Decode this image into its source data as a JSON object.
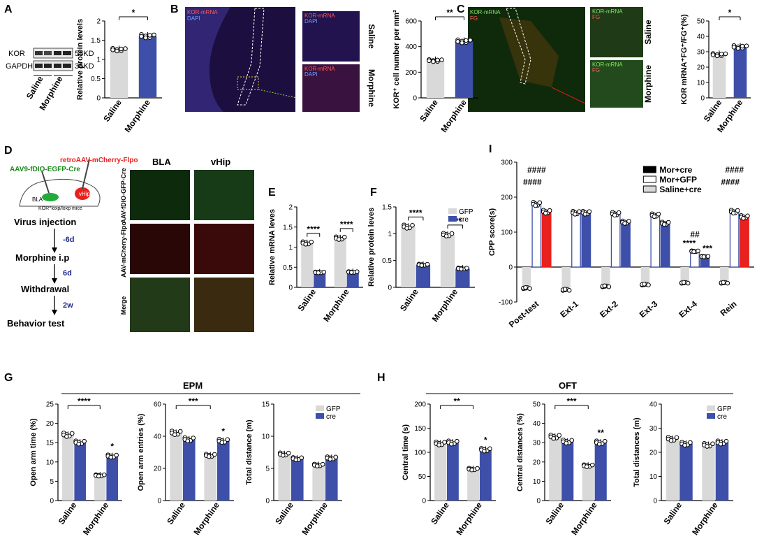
{
  "panels": {
    "A": {
      "label": "A",
      "blot_labels": [
        "KOR",
        "GAPDH"
      ],
      "blot_sizes": [
        "58KD",
        "36KD"
      ],
      "blot_groups": [
        "Saline",
        "Morphine"
      ]
    },
    "B": {
      "label": "B",
      "mic_labels": [
        "KOR-mRNA",
        "DAPI"
      ],
      "side_labels": [
        "Saline",
        "Morphine"
      ]
    },
    "C": {
      "label": "C",
      "mic_labels": [
        "KOR-mRNA",
        "FG"
      ],
      "side_labels": [
        "Saline",
        "Morphine"
      ]
    },
    "D": {
      "label": "D",
      "virus1": "retroAAV-mCherry-Flpo",
      "virus2": "AAV9-fDIO-EGFP-Cre",
      "brain_labels": [
        "BLA",
        "vHip",
        "KOR^loxp/loxp mice"
      ],
      "steps": [
        "Virus injection",
        "Morphine i.p",
        "Withdrawal",
        "Behavior test"
      ],
      "step_gaps": [
        "-6d",
        "6d",
        "2w"
      ],
      "img_cols": [
        "BLA",
        "vHip"
      ],
      "img_rows": [
        "AAV-fDIO-GFP-Cre",
        "AAV-mCherry-Flpo",
        "Merge"
      ]
    },
    "E": {
      "label": "E"
    },
    "F": {
      "label": "F"
    },
    "G": {
      "label": "G",
      "group_title": "EPM"
    },
    "H": {
      "label": "H",
      "group_title": "OFT"
    },
    "I": {
      "label": "I"
    }
  },
  "colors": {
    "saline": "#d9d9d9",
    "morphine": "#3d4fa8",
    "gfp": "#d9d9d9",
    "cre": "#3d4fa8",
    "mor_cre": "#e8211f",
    "mor_gfp_edge": "#3d4fa8"
  },
  "chart_data": [
    {
      "id": "A",
      "type": "bar",
      "categories": [
        "Saline",
        "Morphine"
      ],
      "values": [
        1.25,
        1.6
      ],
      "colors": [
        "#d9d9d9",
        "#3d4fa8"
      ],
      "ylabel": "Relative protein levels",
      "ylim": [
        0,
        2.0
      ],
      "yticks": [
        0,
        0.5,
        1.0,
        1.5,
        2.0
      ],
      "sig": [
        {
          "between": [
            0,
            1
          ],
          "label": "*"
        }
      ]
    },
    {
      "id": "B",
      "type": "bar",
      "categories": [
        "Saline",
        "Morphine"
      ],
      "values": [
        290,
        440
      ],
      "colors": [
        "#d9d9d9",
        "#3d4fa8"
      ],
      "ylabel": "KOR⁺ cell number per mm²",
      "ylim": [
        0,
        600
      ],
      "yticks": [
        0,
        200,
        400,
        600
      ],
      "sig": [
        {
          "between": [
            0,
            1
          ],
          "label": "**"
        }
      ]
    },
    {
      "id": "C",
      "type": "bar",
      "categories": [
        "Saline",
        "Morphine"
      ],
      "values": [
        28,
        33
      ],
      "colors": [
        "#d9d9d9",
        "#3d4fa8"
      ],
      "ylabel": "KOR mRNA⁺FG⁺/FG⁺(%)",
      "ylim": [
        0,
        50
      ],
      "yticks": [
        0,
        10,
        20,
        30,
        40,
        50
      ],
      "sig": [
        {
          "between": [
            0,
            1
          ],
          "label": "*"
        }
      ]
    },
    {
      "id": "E",
      "type": "bar",
      "categories": [
        "Saline",
        "Morphine"
      ],
      "series": [
        {
          "name": "GFP",
          "values": [
            1.1,
            1.22
          ]
        },
        {
          "name": "cre",
          "values": [
            0.37,
            0.38
          ]
        }
      ],
      "ylabel": "Relative mRNA leves",
      "ylim": [
        0,
        2.0
      ],
      "yticks": [
        0.0,
        0.5,
        1.0,
        1.5,
        2.0
      ],
      "sig": [
        {
          "cat": 0,
          "label": "****"
        },
        {
          "cat": 1,
          "label": "****"
        }
      ]
    },
    {
      "id": "F",
      "type": "bar",
      "categories": [
        "Saline",
        "Morphine"
      ],
      "series": [
        {
          "name": "GFP",
          "values": [
            1.13,
            0.98
          ]
        },
        {
          "name": "cre",
          "values": [
            0.42,
            0.35
          ]
        }
      ],
      "ylabel": "Relative protein  leves",
      "ylim": [
        0,
        1.5
      ],
      "yticks": [
        0.0,
        0.5,
        1.0,
        1.5
      ],
      "sig": [
        {
          "cat": 0,
          "label": "****"
        },
        {
          "cat": 1,
          "label": "****"
        }
      ],
      "legend": [
        "GFP",
        "cre"
      ]
    },
    {
      "id": "I",
      "type": "bar",
      "categories": [
        "Post-test",
        "Ext-1",
        "Ext-2",
        "Ext-3",
        "Ext-4",
        "Rein"
      ],
      "series": [
        {
          "name": "Saline+cre",
          "values": [
            -60,
            -65,
            -55,
            -50,
            -45,
            -45
          ]
        },
        {
          "name": "Mor+GFP",
          "values": [
            180,
            155,
            152,
            148,
            45,
            158
          ]
        },
        {
          "name": "Mor+cre",
          "values": [
            158,
            155,
            128,
            125,
            30,
            143
          ]
        }
      ],
      "ylabel": "CPP score(s)",
      "ylim": [
        -100,
        300
      ],
      "yticks": [
        -100,
        0,
        100,
        200,
        300
      ],
      "legend": [
        "Mor+cre",
        "Mor+GFP",
        "Saline+cre"
      ],
      "annotations": [
        "####",
        "####",
        "##",
        "****",
        "***",
        "####",
        "####"
      ]
    },
    {
      "id": "G1",
      "type": "bar",
      "categories": [
        "Saline",
        "Morphine"
      ],
      "series": [
        {
          "name": "GFP",
          "values": [
            17,
            6.5
          ]
        },
        {
          "name": "cre",
          "values": [
            15,
            11.5
          ]
        }
      ],
      "ylabel": "Open arm time (%)",
      "ylim": [
        0,
        25
      ],
      "yticks": [
        0,
        5,
        10,
        15,
        20,
        25
      ],
      "annotations": [
        "****",
        "*"
      ]
    },
    {
      "id": "G2",
      "type": "bar",
      "categories": [
        "Saline",
        "Morphine"
      ],
      "series": [
        {
          "name": "GFP",
          "values": [
            42,
            28
          ]
        },
        {
          "name": "cre",
          "values": [
            38,
            37
          ]
        }
      ],
      "ylabel": "Open arm entries (%)",
      "ylim": [
        0,
        60
      ],
      "yticks": [
        0,
        20,
        40,
        60
      ],
      "annotations": [
        "***",
        "*"
      ]
    },
    {
      "id": "G3",
      "type": "bar",
      "categories": [
        "Saline",
        "Morphine"
      ],
      "series": [
        {
          "name": "GFP",
          "values": [
            7.2,
            5.5
          ]
        },
        {
          "name": "cre",
          "values": [
            6.5,
            6.6
          ]
        }
      ],
      "ylabel": "Total distance (m)",
      "ylim": [
        0,
        15
      ],
      "yticks": [
        0,
        5,
        10,
        15
      ],
      "legend": [
        "GFP",
        "cre"
      ]
    },
    {
      "id": "H1",
      "type": "bar",
      "categories": [
        "Saline",
        "Morphine"
      ],
      "series": [
        {
          "name": "GFP",
          "values": [
            118,
            65
          ]
        },
        {
          "name": "cre",
          "values": [
            120,
            105
          ]
        }
      ],
      "ylabel": "Central time (s)",
      "ylim": [
        0,
        200
      ],
      "yticks": [
        0,
        50,
        100,
        150,
        200
      ],
      "annotations": [
        "**",
        "*"
      ]
    },
    {
      "id": "H2",
      "type": "bar",
      "categories": [
        "Saline",
        "Morphine"
      ],
      "series": [
        {
          "name": "GFP",
          "values": [
            33,
            18
          ]
        },
        {
          "name": "cre",
          "values": [
            30.5,
            30
          ]
        }
      ],
      "ylabel": "Central distances (%)",
      "ylim": [
        0,
        50
      ],
      "yticks": [
        0,
        10,
        20,
        30,
        40,
        50
      ],
      "annotations": [
        "***",
        "**"
      ]
    },
    {
      "id": "H3",
      "type": "bar",
      "categories": [
        "Saline",
        "Morphine"
      ],
      "series": [
        {
          "name": "GFP",
          "values": [
            25.5,
            23
          ]
        },
        {
          "name": "cre",
          "values": [
            23.5,
            24
          ]
        }
      ],
      "ylabel": "Total distances (m)",
      "ylim": [
        0,
        40
      ],
      "yticks": [
        0,
        10,
        20,
        30,
        40
      ],
      "legend": [
        "GFP",
        "cre"
      ]
    }
  ]
}
